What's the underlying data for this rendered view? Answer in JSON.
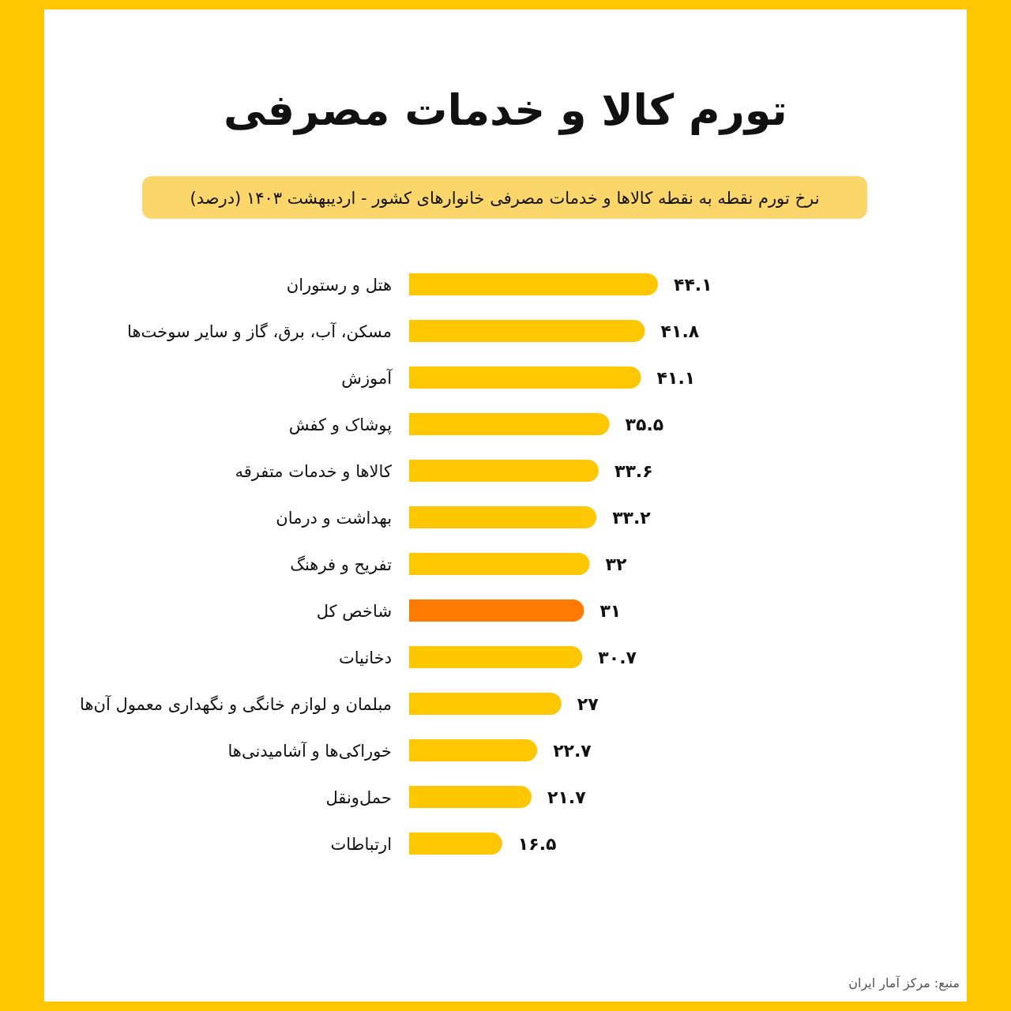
{
  "chart_data": {
    "type": "bar",
    "orientation": "horizontal",
    "title": "تورم کالا و خدمات مصرفی",
    "subtitle": "نرخ تورم نقطه به نقطه کالاها و خدمات مصرفی خانوارهای کشور - اردیبهشت ۱۴۰۳ (درصد)",
    "categories": [
      "هتل و رستوران",
      "مسکن، آب، برق، گاز و سایر سوخت‌ها",
      "آموزش",
      "پوشاک و کفش",
      "کالاها و خدمات متفرقه",
      "بهداشت و درمان",
      "تفریح و فرهنگ",
      "شاخص کل",
      "دخانیات",
      "مبلمان و لوازم خانگی و نگهداری معمول آن‌ها",
      "خوراکی‌ها و آشامیدنی‌ها",
      "حمل‌ونقل",
      "ارتباطات"
    ],
    "values": [
      44.1,
      41.8,
      41.1,
      35.5,
      33.6,
      33.2,
      32,
      31,
      30.7,
      27,
      22.7,
      21.7,
      16.5
    ],
    "colors": [
      "#ffc700",
      "#ffc700",
      "#ffc700",
      "#ffc700",
      "#ffc700",
      "#ffc700",
      "#ffc700",
      "#ff7a00",
      "#ffc700",
      "#ffc700",
      "#ffc700",
      "#ffc700",
      "#ffc700"
    ],
    "value_labels": [
      "۴۴.۱",
      "۴۱.۸",
      "۴۱.۱",
      "۳۵.۵",
      "۳۳.۶",
      "۳۳.۲",
      "۳۲",
      "۳۱",
      "۳۰.۷",
      "۲۷",
      "۲۲.۷",
      "۲۱.۷",
      "۱۶.۵"
    ],
    "annotations": [
      "منبع: مرکز آمار ایران"
    ]
  }
}
